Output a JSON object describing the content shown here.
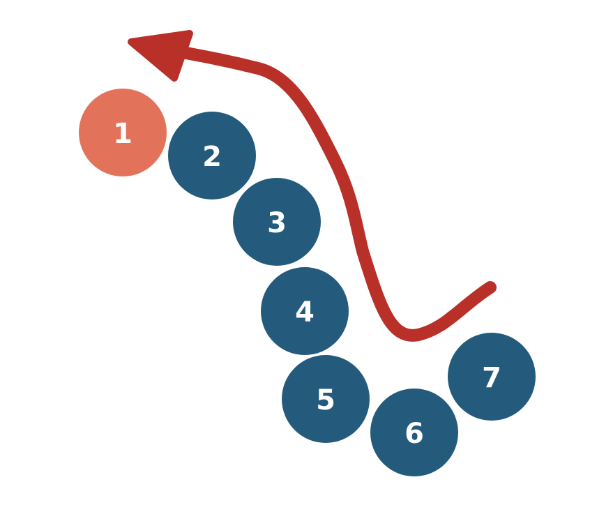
{
  "colors": {
    "highlight": "#E2735A",
    "node": "#245A7C",
    "arrow": "#B83028"
  },
  "nodes": [
    {
      "label": "1",
      "highlighted": true
    },
    {
      "label": "2",
      "highlighted": false
    },
    {
      "label": "3",
      "highlighted": false
    },
    {
      "label": "4",
      "highlighted": false
    },
    {
      "label": "5",
      "highlighted": false
    },
    {
      "label": "6",
      "highlighted": false
    },
    {
      "label": "7",
      "highlighted": false
    }
  ]
}
